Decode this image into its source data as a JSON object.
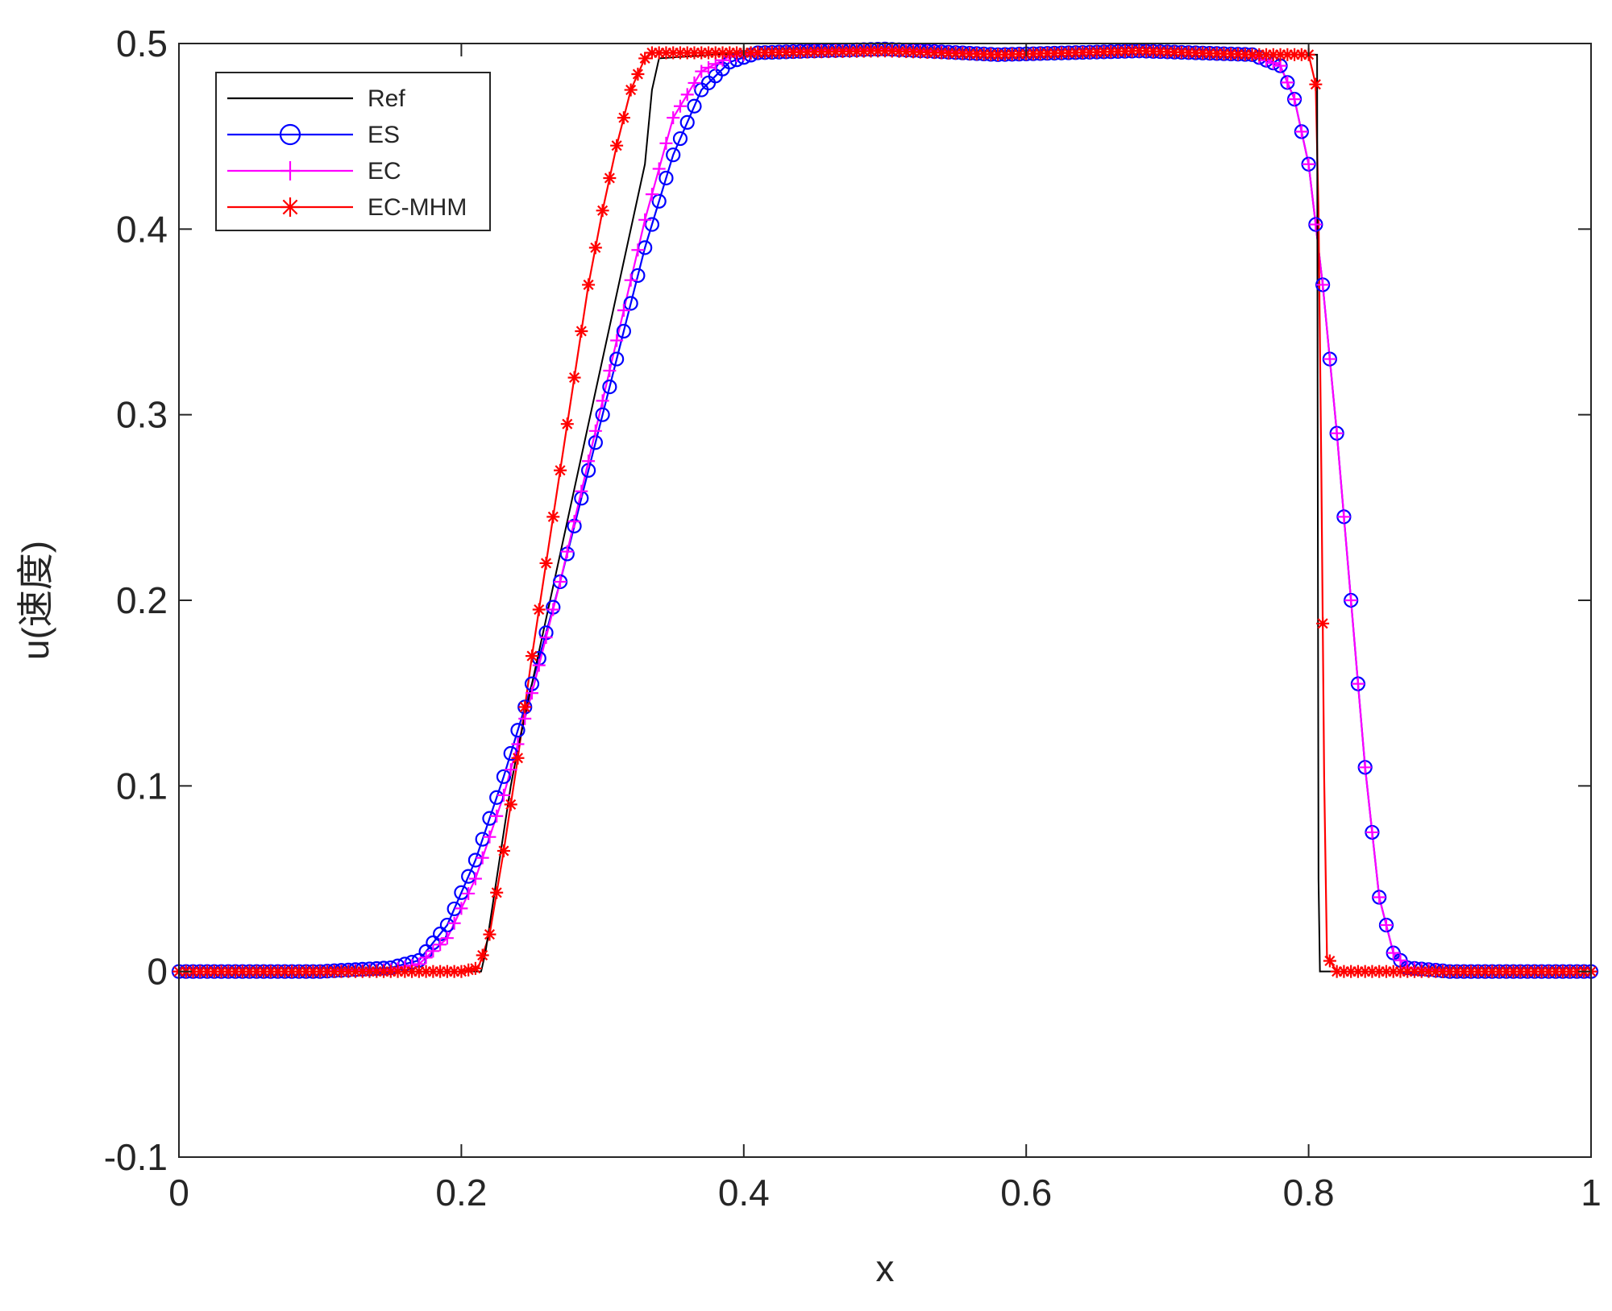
{
  "chart_data": {
    "type": "line",
    "title": "",
    "xlabel": "x",
    "ylabel": "u(速度)",
    "xlim": [
      0,
      1
    ],
    "ylim": [
      -0.1,
      0.5
    ],
    "x_ticks": [
      "0",
      "0.2",
      "0.4",
      "0.6",
      "0.8",
      "1"
    ],
    "y_ticks": [
      "-0.1",
      "0",
      "0.1",
      "0.2",
      "0.3",
      "0.4",
      "0.5"
    ],
    "grid": false,
    "legend_position": "top-left",
    "series": [
      {
        "name": "Ref",
        "color": "#000000",
        "marker": "none",
        "x": [
          0,
          0.214,
          0.217,
          0.22,
          0.225,
          0.23,
          0.235,
          0.24,
          0.25,
          0.26,
          0.27,
          0.28,
          0.29,
          0.3,
          0.31,
          0.32,
          0.33,
          0.335,
          0.34,
          0.4,
          0.5,
          0.58,
          0.68,
          0.76,
          0.806,
          0.8065,
          0.807,
          0.808,
          0.81,
          1.0
        ],
        "y": [
          0,
          0,
          0.01,
          0.025,
          0.05,
          0.075,
          0.1,
          0.12,
          0.155,
          0.19,
          0.225,
          0.26,
          0.295,
          0.33,
          0.365,
          0.4,
          0.435,
          0.475,
          0.492,
          0.495,
          0.496,
          0.494,
          0.496,
          0.494,
          0.494,
          0.25,
          0.05,
          0.0,
          0.0,
          0
        ]
      },
      {
        "name": "ES",
        "color": "#0000ff",
        "marker": "o",
        "x": [
          0,
          0.1,
          0.15,
          0.17,
          0.19,
          0.21,
          0.23,
          0.25,
          0.27,
          0.29,
          0.31,
          0.33,
          0.35,
          0.37,
          0.39,
          0.41,
          0.45,
          0.5,
          0.58,
          0.68,
          0.76,
          0.78,
          0.79,
          0.8,
          0.81,
          0.82,
          0.83,
          0.84,
          0.85,
          0.86,
          0.87,
          0.9,
          1.0
        ],
        "y": [
          0,
          0,
          0.002,
          0.006,
          0.025,
          0.06,
          0.105,
          0.155,
          0.21,
          0.27,
          0.33,
          0.39,
          0.44,
          0.475,
          0.49,
          0.495,
          0.496,
          0.497,
          0.494,
          0.496,
          0.494,
          0.488,
          0.47,
          0.435,
          0.37,
          0.29,
          0.2,
          0.11,
          0.04,
          0.01,
          0.002,
          0,
          0
        ]
      },
      {
        "name": "EC",
        "color": "#ff00ff",
        "marker": "+",
        "x": [
          0,
          0.1,
          0.15,
          0.17,
          0.19,
          0.21,
          0.23,
          0.25,
          0.27,
          0.29,
          0.31,
          0.33,
          0.35,
          0.37,
          0.39,
          0.41,
          0.45,
          0.5,
          0.58,
          0.68,
          0.76,
          0.78,
          0.79,
          0.8,
          0.81,
          0.82,
          0.83,
          0.84,
          0.85,
          0.86,
          0.87,
          0.9,
          1.0
        ],
        "y": [
          0,
          0,
          0.001,
          0.004,
          0.018,
          0.05,
          0.095,
          0.15,
          0.21,
          0.275,
          0.34,
          0.405,
          0.46,
          0.485,
          0.493,
          0.495,
          0.496,
          0.497,
          0.494,
          0.496,
          0.494,
          0.488,
          0.47,
          0.435,
          0.37,
          0.29,
          0.2,
          0.11,
          0.04,
          0.01,
          0.002,
          0,
          0
        ]
      },
      {
        "name": "EC-MHM",
        "color": "#ff0000",
        "marker": "*",
        "x": [
          0,
          0.1,
          0.2,
          0.212,
          0.22,
          0.23,
          0.24,
          0.25,
          0.26,
          0.27,
          0.28,
          0.29,
          0.3,
          0.31,
          0.32,
          0.33,
          0.335,
          0.34,
          0.4,
          0.5,
          0.58,
          0.68,
          0.76,
          0.8,
          0.805,
          0.807,
          0.809,
          0.811,
          0.813,
          0.82,
          0.9,
          1.0
        ],
        "y": [
          0,
          0,
          0,
          0.002,
          0.02,
          0.065,
          0.115,
          0.17,
          0.22,
          0.27,
          0.32,
          0.37,
          0.41,
          0.445,
          0.475,
          0.492,
          0.495,
          0.495,
          0.495,
          0.496,
          0.494,
          0.496,
          0.494,
          0.494,
          0.478,
          0.41,
          0.27,
          0.105,
          0.008,
          0,
          0,
          0
        ]
      }
    ]
  }
}
